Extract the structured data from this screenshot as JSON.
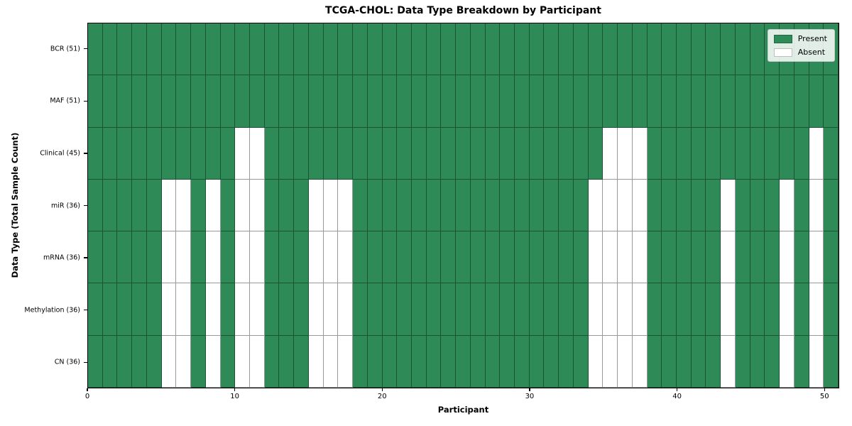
{
  "chart_data": {
    "type": "heatmap",
    "title": "TCGA-CHOL: Data Type Breakdown by Participant",
    "xlabel": "Participant",
    "ylabel": "Data Type (Total Sample Count)",
    "n_participants": 51,
    "x_range": [
      0,
      51
    ],
    "x_ticks": [
      0,
      10,
      20,
      30,
      40,
      50
    ],
    "grid": "cell-borders",
    "rows": [
      {
        "data_type": "BCR",
        "label": "BCR (51)",
        "total": 51,
        "absent_participants": []
      },
      {
        "data_type": "MAF",
        "label": "MAF (51)",
        "total": 51,
        "absent_participants": []
      },
      {
        "data_type": "Clinical",
        "label": "Clinical (45)",
        "total": 45,
        "absent_participants": [
          10,
          11,
          35,
          36,
          37,
          49
        ]
      },
      {
        "data_type": "miR",
        "label": "miR (36)",
        "total": 36,
        "absent_participants": [
          5,
          6,
          8,
          10,
          11,
          15,
          16,
          17,
          34,
          35,
          36,
          37,
          43,
          47,
          49
        ]
      },
      {
        "data_type": "mRNA",
        "label": "mRNA (36)",
        "total": 36,
        "absent_participants": [
          5,
          6,
          8,
          10,
          11,
          15,
          16,
          17,
          34,
          35,
          36,
          37,
          43,
          47,
          49
        ]
      },
      {
        "data_type": "Methylation",
        "label": "Methylation (36)",
        "total": 36,
        "absent_participants": [
          5,
          6,
          8,
          10,
          11,
          15,
          16,
          17,
          34,
          35,
          36,
          37,
          43,
          47,
          49
        ]
      },
      {
        "data_type": "CN",
        "label": "CN (36)",
        "total": 36,
        "absent_participants": [
          5,
          6,
          8,
          10,
          11,
          15,
          16,
          17,
          34,
          35,
          36,
          37,
          43,
          47,
          49
        ]
      }
    ],
    "legend": {
      "position": "upper-right",
      "entries": [
        {
          "label": "Present",
          "color": "#2e8b57"
        },
        {
          "label": "Absent",
          "color": "#ffffff"
        }
      ]
    },
    "colors": {
      "present": "#2e8b57",
      "absent": "#ffffff",
      "cell_edge": "rgba(0,0,0,0.4)",
      "spine": "#000000"
    }
  }
}
